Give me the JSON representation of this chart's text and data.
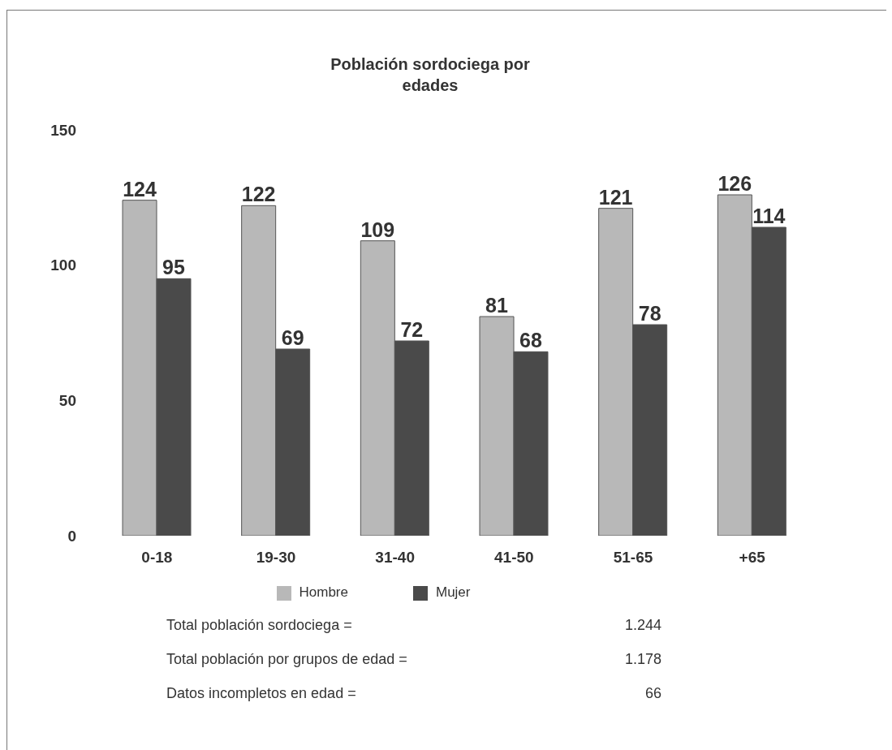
{
  "chart_data": {
    "type": "bar",
    "title": "Población sordociega por edades",
    "categories": [
      "0-18",
      "19-30",
      "31-40",
      "41-50",
      "51-65",
      "+65"
    ],
    "series": [
      {
        "name": "Hombre",
        "color": "#b8b8b8",
        "values": [
          124,
          122,
          109,
          81,
          121,
          126
        ]
      },
      {
        "name": "Mujer",
        "color": "#4a4a4a",
        "values": [
          95,
          69,
          72,
          68,
          78,
          114
        ]
      }
    ],
    "ylim": [
      0,
      150
    ],
    "yticks": [
      0,
      50,
      100,
      150
    ],
    "grid": false,
    "legend": "bottom",
    "data_labels": true,
    "annotations": [
      "Total población sordociega = 1.244",
      "Total población por grupos de edad = 1.178",
      "Datos incompletos en edad = 66"
    ]
  }
}
